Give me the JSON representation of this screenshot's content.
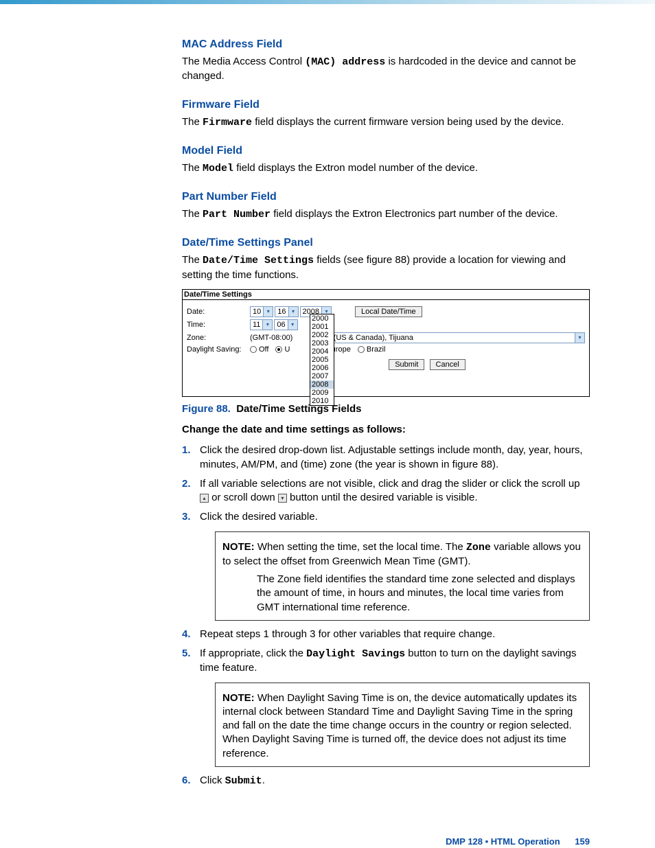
{
  "sections": {
    "mac": {
      "heading": "MAC Address Field",
      "text_pre": "The Media Access Control ",
      "mono": "(MAC) address",
      "text_post": " is hardcoded in the device and cannot be changed."
    },
    "firmware": {
      "heading": "Firmware Field",
      "text_pre": "The ",
      "mono": "Firmware",
      "text_post": " field displays the current firmware version being used by the device."
    },
    "model": {
      "heading": "Model Field",
      "text_pre": "The ",
      "mono": "Model",
      "text_post": " field displays the Extron model number of the device."
    },
    "part": {
      "heading": "Part Number Field",
      "text_pre": "The ",
      "mono": "Part Number",
      "text_post": " field displays the Extron Electronics part number of the device."
    },
    "datetime": {
      "heading": "Date/Time Settings Panel",
      "text_pre": "The ",
      "mono": "Date/Time Settings",
      "text_post": " fields (see figure 88) provide a location for viewing and setting the time functions."
    }
  },
  "panel": {
    "title": "Date/Time Settings",
    "labels": {
      "date": "Date:",
      "time": "Time:",
      "zone": "Zone:",
      "ds": "Daylight Saving:"
    },
    "date": {
      "month": "10",
      "day": "16",
      "year": "2008"
    },
    "time": {
      "hour": "11",
      "min": "06"
    },
    "local_btn": "Local Date/Time",
    "zone_prefix": "(GMT-08:00)",
    "zone_text": "ne (US & Canada), Tijuana",
    "ds_options": {
      "off": "Off",
      "usa": "U",
      "europe": "Europe",
      "brazil": "Brazil"
    },
    "submit": "Submit",
    "cancel": "Cancel",
    "year_options": [
      "2000",
      "2001",
      "2002",
      "2003",
      "2004",
      "2005",
      "2006",
      "2007",
      "2008",
      "2009",
      "2010"
    ],
    "year_selected": "2008"
  },
  "figure": {
    "label": "Figure 88.",
    "title": "Date/Time Settings Fields"
  },
  "instr_head": "Change the date and time settings as follows:",
  "steps": {
    "s1": {
      "n": "1.",
      "t": "Click the desired drop-down list. Adjustable settings include month, day, year, hours, minutes, AM/PM, and (time) zone (the year is shown in figure 88)."
    },
    "s2": {
      "n": "2.",
      "t_a": "If all variable selections are not visible, click and drag the slider or click the scroll up ",
      "t_b": " or scroll down ",
      "t_c": " button until the desired variable is visible."
    },
    "s3": {
      "n": "3.",
      "t": "Click the desired variable."
    },
    "s4": {
      "n": "4.",
      "t": "Repeat steps 1 through 3 for other variables that require change."
    },
    "s5": {
      "n": "5.",
      "t_a": "If appropriate, click the ",
      "mono": "Daylight Savings",
      "t_b": " button to turn on the daylight savings time feature."
    },
    "s6": {
      "n": "6.",
      "t_a": "Click ",
      "mono": "Submit",
      "t_b": "."
    }
  },
  "note1": {
    "label": "NOTE:",
    "p1_a": "When setting the time, set the local time. The ",
    "p1_mono": "Zone",
    "p1_b": " variable allows you to select the offset from Greenwich Mean Time (GMT).",
    "p2": "The Zone field identifies the standard time zone selected and displays the amount of time, in hours and minutes, the local time varies from GMT international time reference."
  },
  "note2": {
    "label": "NOTE:",
    "p1": "When Daylight Saving Time is on, the device automatically updates its internal clock between Standard Time and Daylight Saving Time in the spring and fall on the date the time change occurs in the country or region selected. When Daylight Saving Time is turned off, the device does not adjust its time reference."
  },
  "footer": {
    "product": "DMP 128 • HTML Operation",
    "page": "159"
  },
  "colors": {
    "heading": "#0b4da2",
    "topbar_start": "#3499cc"
  }
}
